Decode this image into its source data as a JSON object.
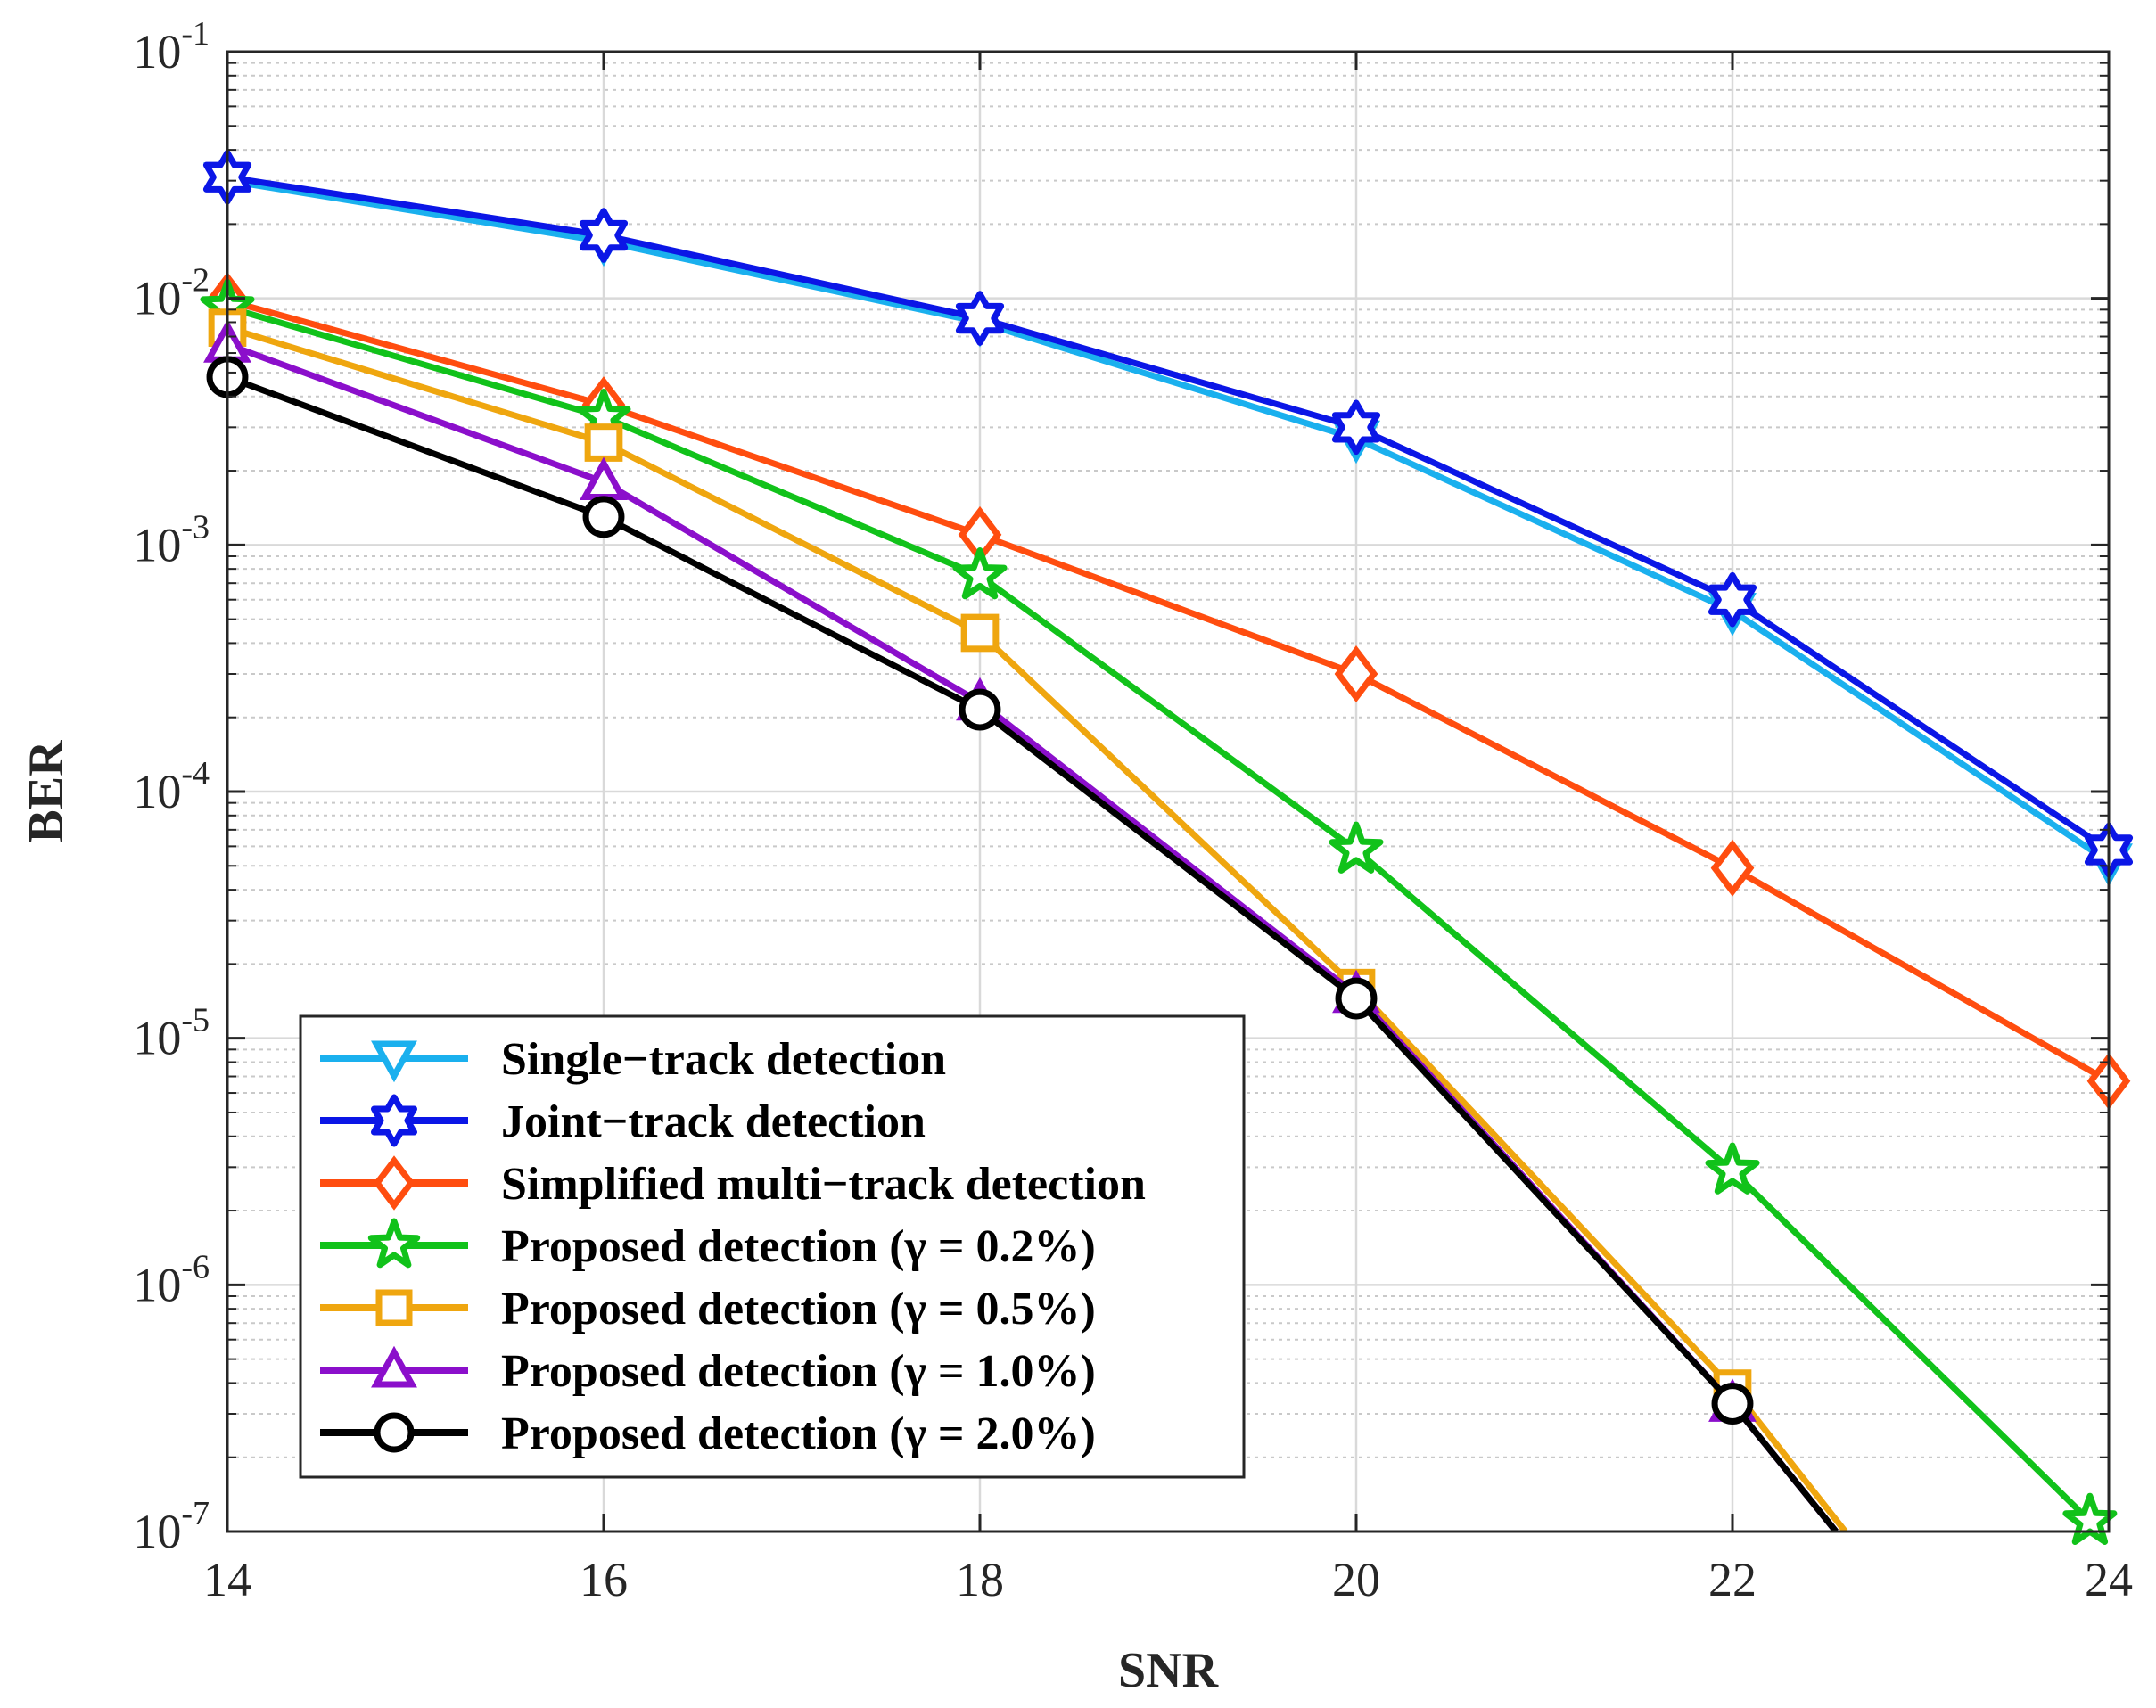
{
  "chart_data": {
    "type": "line",
    "title": "",
    "xlabel": "SNR",
    "ylabel": "BER",
    "xlim": [
      14,
      24
    ],
    "ylim": [
      1e-07,
      0.1
    ],
    "yscale": "log",
    "grid": true,
    "minor_grid": true,
    "legend_position": "bottom-left",
    "x_ticks": [
      14,
      16,
      18,
      20,
      22,
      24
    ],
    "x_tick_labels": [
      "14",
      "16",
      "18",
      "20",
      "22",
      "24"
    ],
    "y_ticks": [
      1e-07,
      1e-06,
      1e-05,
      0.0001,
      0.001,
      0.01,
      0.1
    ],
    "y_tick_labels": [
      {
        "base": "10",
        "exp": "-7"
      },
      {
        "base": "10",
        "exp": "-6"
      },
      {
        "base": "10",
        "exp": "-5"
      },
      {
        "base": "10",
        "exp": "-4"
      },
      {
        "base": "10",
        "exp": "-3"
      },
      {
        "base": "10",
        "exp": "-2"
      },
      {
        "base": "10",
        "exp": "-1"
      }
    ],
    "series": [
      {
        "name": "Single−track detection",
        "color": "#1AB0EE",
        "marker": "triangle-down",
        "x": [
          14,
          16,
          18,
          20,
          22,
          24
        ],
        "y": [
          0.03,
          0.017,
          0.008,
          0.0027,
          0.00054,
          5.2e-05
        ]
      },
      {
        "name": "Joint−track detection",
        "color": "#0B16E6",
        "marker": "hexagram",
        "x": [
          14,
          16,
          18,
          20,
          22,
          24
        ],
        "y": [
          0.031,
          0.018,
          0.0083,
          0.003,
          0.0006,
          5.8e-05
        ]
      },
      {
        "name": "Simplified multi−track detection",
        "color": "#FF4D0F",
        "marker": "diamond",
        "x": [
          14,
          16,
          18,
          20,
          22,
          24
        ],
        "y": [
          0.0098,
          0.0037,
          0.0011,
          0.0003,
          4.9e-05,
          6.7e-06
        ]
      },
      {
        "name": "Proposed detection (γ = 0.2%)",
        "color": "#11C21A",
        "marker": "pentagram",
        "x": [
          14,
          16,
          18,
          20,
          22,
          23.9
        ],
        "y": [
          0.0092,
          0.0033,
          0.00075,
          5.8e-05,
          2.9e-06,
          1.1e-07
        ]
      },
      {
        "name": "Proposed detection (γ = 0.5%)",
        "color": "#EFA60F",
        "marker": "square",
        "x": [
          14,
          16,
          18,
          20,
          22,
          22.6
        ],
        "y": [
          0.0076,
          0.0026,
          0.00044,
          1.6e-05,
          3.8e-07,
          1e-07
        ]
      },
      {
        "name": "Proposed detection (γ = 1.0%)",
        "color": "#8B0FCB",
        "marker": "triangle-up",
        "x": [
          14,
          16,
          18,
          20,
          22,
          22.55
        ],
        "y": [
          0.0065,
          0.0018,
          0.00023,
          1.5e-05,
          3.3e-07,
          1e-07
        ]
      },
      {
        "name": "Proposed detection (γ = 2.0%)",
        "color": "#000000",
        "marker": "circle",
        "x": [
          14,
          16,
          18,
          20,
          22,
          22.55
        ],
        "y": [
          0.0048,
          0.0013,
          0.000215,
          1.45e-05,
          3.3e-07,
          1e-07
        ]
      }
    ]
  }
}
